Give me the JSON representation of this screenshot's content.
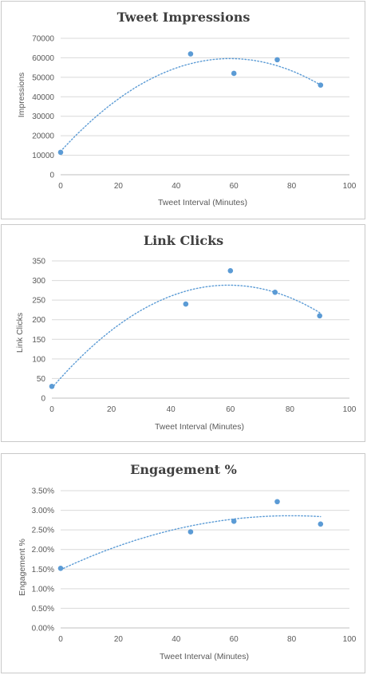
{
  "colors": {
    "marker": "#5b9bd5",
    "trendline": "#5b9bd5",
    "gridline": "#d9d9d9",
    "text": "#595959"
  },
  "chart_data": [
    {
      "type": "scatter",
      "title": "Tweet Impressions",
      "xlabel": "Tweet  Interval (Minutes)",
      "ylabel": "Impressions",
      "xlim": [
        0,
        100
      ],
      "ylim": [
        0,
        70000
      ],
      "xticks": [
        0,
        20,
        40,
        60,
        80,
        100
      ],
      "yticks": [
        0,
        10000,
        20000,
        30000,
        40000,
        50000,
        60000,
        70000
      ],
      "ytick_labels": [
        "0",
        "10000",
        "20000",
        "30000",
        "40000",
        "50000",
        "60000",
        "70000"
      ],
      "grid": "horizontal",
      "trendline": "polynomial (dotted)",
      "series": [
        {
          "x": [
            0,
            45,
            60,
            75,
            90
          ],
          "y": [
            11500,
            62000,
            52000,
            59000,
            46000
          ]
        }
      ]
    },
    {
      "type": "scatter",
      "title": "Link Clicks",
      "xlabel": "Tweet  Interval (Minutes)",
      "ylabel": "Link Clicks",
      "xlim": [
        0,
        100
      ],
      "ylim": [
        0,
        350
      ],
      "xticks": [
        0,
        20,
        40,
        60,
        80,
        100
      ],
      "yticks": [
        0,
        50,
        100,
        150,
        200,
        250,
        300,
        350
      ],
      "ytick_labels": [
        "0",
        "50",
        "100",
        "150",
        "200",
        "250",
        "300",
        "350"
      ],
      "grid": "horizontal",
      "trendline": "polynomial (dotted)",
      "series": [
        {
          "x": [
            0,
            45,
            60,
            75,
            90
          ],
          "y": [
            30,
            240,
            325,
            270,
            210
          ]
        }
      ]
    },
    {
      "type": "scatter",
      "title": "Engagement %",
      "xlabel": "Tweet  Interval (Minutes)",
      "ylabel": "Engagement  %",
      "xlim": [
        0,
        100
      ],
      "ylim": [
        0,
        3.5
      ],
      "xticks": [
        0,
        20,
        40,
        60,
        80,
        100
      ],
      "yticks": [
        0,
        0.5,
        1,
        1.5,
        2,
        2.5,
        3,
        3.5
      ],
      "ytick_labels": [
        "0.00%",
        "0.50%",
        "1.00%",
        "1.50%",
        "2.00%",
        "2.50%",
        "3.00%",
        "3.50%"
      ],
      "grid": "horizontal",
      "trendline": "polynomial (dotted)",
      "series": [
        {
          "x": [
            0,
            45,
            60,
            75,
            90
          ],
          "y": [
            1.52,
            2.45,
            2.72,
            3.22,
            2.65
          ]
        }
      ]
    }
  ]
}
